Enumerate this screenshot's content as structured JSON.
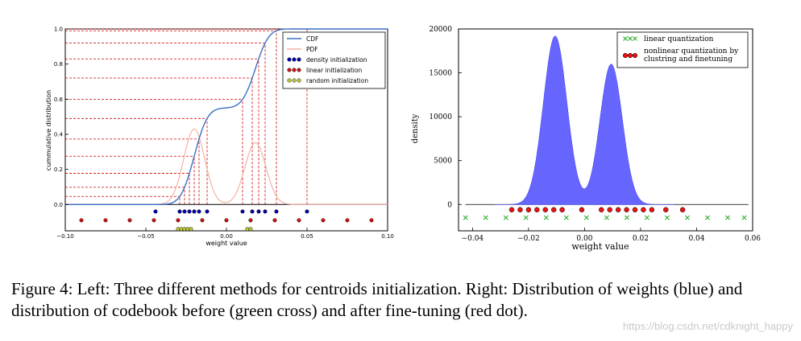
{
  "chart_data": [
    {
      "type": "line",
      "panel": "left",
      "title": "",
      "xlabel": "weight value",
      "ylabel": "cummulative distribution",
      "xlim": [
        -0.1,
        0.1
      ],
      "ylim": [
        -0.15,
        1.0
      ],
      "x_ticks": [
        -0.1,
        -0.05,
        0.0,
        0.05,
        0.1
      ],
      "x_tick_labels": [
        "−0.10",
        "−0.05",
        "0.00",
        "0.05",
        "0.10"
      ],
      "y_ticks": [
        0.0,
        0.2,
        0.4,
        0.6,
        0.8,
        1.0
      ],
      "y_tick_labels": [
        "0.0",
        "0.2",
        "0.4",
        "0.6",
        "0.8",
        "1.0"
      ],
      "legend": [
        {
          "label": "CDF",
          "kind": "line",
          "color": "#3a6fc4"
        },
        {
          "label": "PDF",
          "kind": "line",
          "color": "#f4b3a4"
        },
        {
          "label": "density initialization",
          "kind": "marker",
          "color": "#0000aa"
        },
        {
          "label": "linear initialization",
          "kind": "marker",
          "color": "#cc1111"
        },
        {
          "label": "random initialization",
          "kind": "marker",
          "color": "#b8c23a"
        }
      ],
      "legend_position": "right",
      "distribution": {
        "modes": [
          -0.02,
          0.018
        ],
        "sigmas": [
          0.0065,
          0.0065
        ],
        "weights": [
          0.55,
          0.45
        ]
      },
      "density_init_x": [
        -0.044,
        -0.029,
        -0.026,
        -0.023,
        -0.02,
        -0.017,
        -0.012,
        0.01,
        0.016,
        0.02,
        0.024,
        0.031,
        0.05
      ],
      "density_init_y": -0.04,
      "linear_init_x": [
        -0.09,
        -0.075,
        -0.06,
        -0.045,
        -0.03,
        -0.015,
        0.0,
        0.015,
        0.03,
        0.045,
        0.06,
        0.075,
        0.09
      ],
      "linear_init_y": -0.09,
      "random_init_x": [
        -0.03,
        -0.028,
        -0.026,
        -0.024,
        -0.022,
        0.013,
        0.015
      ],
      "random_init_y": -0.14,
      "reference_line_color": "#cc0000"
    },
    {
      "type": "histogram",
      "panel": "right",
      "title": "",
      "xlabel": "weight value",
      "ylabel": "density",
      "xlim": [
        -0.045,
        0.06
      ],
      "ylim": [
        -3000,
        20000
      ],
      "x_ticks": [
        -0.04,
        -0.02,
        0.0,
        0.02,
        0.04,
        0.06
      ],
      "x_tick_labels": [
        "−0.04",
        "−0.02",
        "0.00",
        "0.02",
        "0.04",
        "0.06"
      ],
      "y_ticks": [
        0,
        5000,
        10000,
        15000,
        20000
      ],
      "y_tick_labels": [
        "0",
        "5000",
        "10000",
        "15000",
        "20000"
      ],
      "fill_color": "#6666ff",
      "legend": [
        {
          "label": "linear quantization",
          "kind": "cross",
          "color": "#22aa22"
        },
        {
          "label": "nonlinear quantization by\nclustring and finetuning",
          "kind": "marker",
          "color": "#ee1111"
        }
      ],
      "legend_position": "top-right",
      "peaks": [
        {
          "center": -0.0105,
          "sigma": 0.0042,
          "height": 19200
        },
        {
          "center": 0.0095,
          "sigma": 0.004,
          "height": 16000
        }
      ],
      "nonlinear_x": [
        -0.026,
        -0.023,
        -0.02,
        -0.017,
        -0.014,
        -0.011,
        -0.008,
        -0.001,
        0.006,
        0.009,
        0.012,
        0.015,
        0.018,
        0.021,
        0.024,
        0.029,
        0.035
      ],
      "nonlinear_y": -600,
      "linear_x": [
        -0.0425,
        -0.0353,
        -0.0281,
        -0.0209,
        -0.0137,
        -0.0065,
        0.0007,
        0.0079,
        0.0151,
        0.0223,
        0.0295,
        0.0367,
        0.0439,
        0.0511,
        0.057
      ],
      "linear_y": -1500
    }
  ],
  "caption": "Figure 4: Left: Three different methods for centroids initialization. Right: Distribution of weights (blue) and distribution of codebook before (green cross) and after fine-tuning (red dot).",
  "watermark": "https://blog.csdn.net/cdknight_happy"
}
